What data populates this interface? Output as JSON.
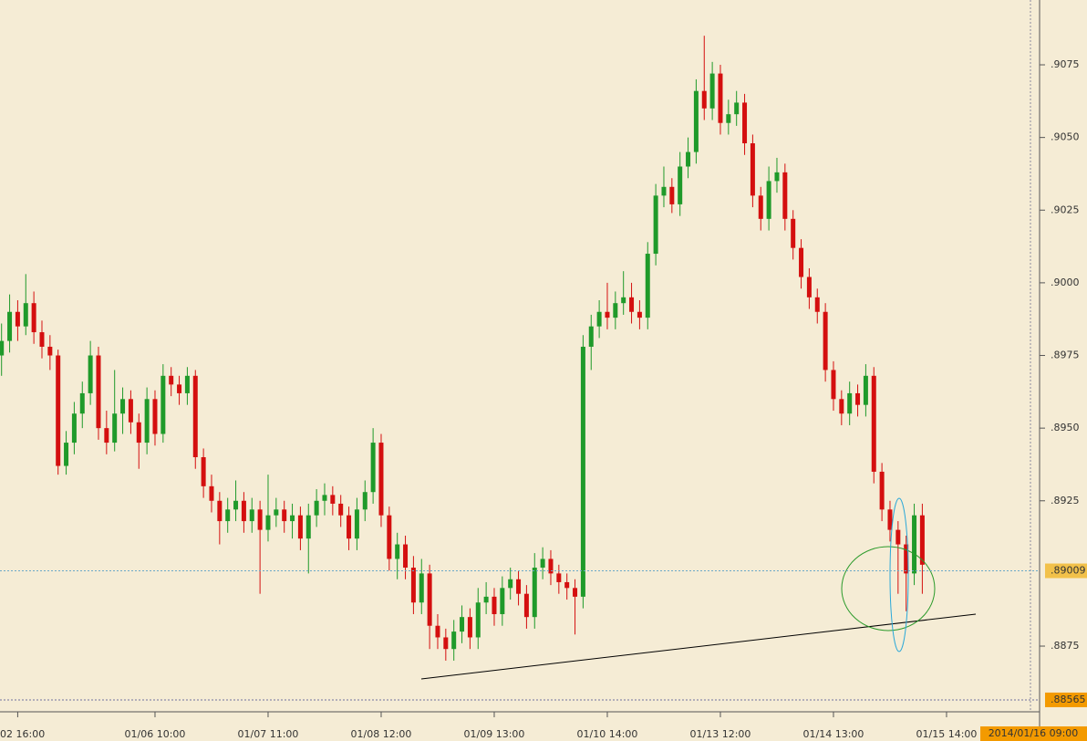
{
  "chart_data": {
    "type": "candlestick",
    "up_color": "#1f9a2a",
    "down_color": "#d40f0f",
    "ylim": [
      0.88524,
      0.90973
    ],
    "yticks": [
      {
        "value": 0.9075,
        "label": ".9075"
      },
      {
        "value": 0.905,
        "label": ".9050"
      },
      {
        "value": 0.9025,
        "label": ".9025"
      },
      {
        "value": 0.9,
        "label": ".9000"
      },
      {
        "value": 0.8975,
        "label": ".8975"
      },
      {
        "value": 0.895,
        "label": ".8950"
      },
      {
        "value": 0.8925,
        "label": ".8925"
      },
      {
        "value": 0.8875,
        "label": ".8875"
      }
    ],
    "current_price": {
      "value": 0.89009,
      "label": ".89009"
    },
    "low_marker": {
      "value": 0.88565,
      "label": ".88565"
    },
    "time_label": "2014/01/16 09:00",
    "categories": [
      null,
      null,
      "02 16:00",
      null,
      null,
      null,
      null,
      null,
      null,
      null,
      null,
      null,
      null,
      null,
      null,
      null,
      null,
      null,
      null,
      "01/06 10:00",
      null,
      null,
      null,
      null,
      null,
      null,
      null,
      null,
      null,
      null,
      null,
      null,
      null,
      "01/07 11:00",
      null,
      null,
      null,
      null,
      null,
      null,
      null,
      null,
      null,
      null,
      null,
      null,
      null,
      "01/08 12:00",
      null,
      null,
      null,
      null,
      null,
      null,
      null,
      null,
      null,
      null,
      null,
      null,
      null,
      "01/09 13:00",
      null,
      null,
      null,
      null,
      null,
      null,
      null,
      null,
      null,
      null,
      null,
      null,
      null,
      "01/10 14:00",
      null,
      null,
      null,
      null,
      null,
      null,
      null,
      null,
      null,
      null,
      null,
      null,
      null,
      "01/13 12:00",
      null,
      null,
      null,
      null,
      null,
      null,
      null,
      null,
      null,
      null,
      null,
      null,
      null,
      "01/14 13:00",
      null,
      null,
      null,
      null,
      null,
      null,
      null,
      null,
      null,
      null,
      null,
      null,
      null,
      "01/15 14:00"
    ],
    "ohlc": [
      [
        0.8975,
        0.8986,
        0.8968,
        0.898
      ],
      [
        0.898,
        0.8996,
        0.8976,
        0.899
      ],
      [
        0.899,
        0.8994,
        0.898,
        0.8985
      ],
      [
        0.8985,
        0.9003,
        0.8982,
        0.8993
      ],
      [
        0.8993,
        0.8997,
        0.8979,
        0.8983
      ],
      [
        0.8983,
        0.8987,
        0.8974,
        0.8978
      ],
      [
        0.8978,
        0.8982,
        0.897,
        0.8975
      ],
      [
        0.8975,
        0.8977,
        0.8934,
        0.8937
      ],
      [
        0.8937,
        0.8949,
        0.8934,
        0.8945
      ],
      [
        0.8945,
        0.8959,
        0.8941,
        0.8955
      ],
      [
        0.8955,
        0.8966,
        0.895,
        0.8962
      ],
      [
        0.8962,
        0.898,
        0.8958,
        0.8975
      ],
      [
        0.8975,
        0.8978,
        0.8946,
        0.895
      ],
      [
        0.895,
        0.8956,
        0.8941,
        0.8945
      ],
      [
        0.8945,
        0.897,
        0.8942,
        0.8955
      ],
      [
        0.8955,
        0.8964,
        0.8948,
        0.896
      ],
      [
        0.896,
        0.8963,
        0.8948,
        0.8952
      ],
      [
        0.8952,
        0.8955,
        0.8936,
        0.8945
      ],
      [
        0.8945,
        0.8964,
        0.8941,
        0.896
      ],
      [
        0.896,
        0.8963,
        0.8944,
        0.8948
      ],
      [
        0.8948,
        0.8972,
        0.8945,
        0.8968
      ],
      [
        0.8968,
        0.8971,
        0.8961,
        0.8965
      ],
      [
        0.8965,
        0.8968,
        0.8958,
        0.8962
      ],
      [
        0.8962,
        0.8971,
        0.8958,
        0.8968
      ],
      [
        0.8968,
        0.897,
        0.8936,
        0.894
      ],
      [
        0.894,
        0.8943,
        0.8926,
        0.893
      ],
      [
        0.893,
        0.8934,
        0.8921,
        0.8925
      ],
      [
        0.8925,
        0.8928,
        0.891,
        0.8918
      ],
      [
        0.8918,
        0.8926,
        0.8914,
        0.8922
      ],
      [
        0.8922,
        0.8932,
        0.8918,
        0.8925
      ],
      [
        0.8925,
        0.8928,
        0.8914,
        0.8918
      ],
      [
        0.8918,
        0.8926,
        0.8914,
        0.8922
      ],
      [
        0.8922,
        0.8925,
        0.8893,
        0.8915
      ],
      [
        0.8915,
        0.8934,
        0.8911,
        0.892
      ],
      [
        0.892,
        0.8926,
        0.8916,
        0.8922
      ],
      [
        0.8922,
        0.8925,
        0.8914,
        0.8918
      ],
      [
        0.8918,
        0.8924,
        0.8912,
        0.892
      ],
      [
        0.892,
        0.8923,
        0.8908,
        0.8912
      ],
      [
        0.8912,
        0.8924,
        0.89,
        0.892
      ],
      [
        0.892,
        0.8929,
        0.8916,
        0.8925
      ],
      [
        0.8925,
        0.8931,
        0.892,
        0.8927
      ],
      [
        0.8927,
        0.893,
        0.892,
        0.8924
      ],
      [
        0.8924,
        0.8927,
        0.8916,
        0.892
      ],
      [
        0.892,
        0.8923,
        0.8908,
        0.8912
      ],
      [
        0.8912,
        0.8926,
        0.8908,
        0.8922
      ],
      [
        0.8922,
        0.8932,
        0.8918,
        0.8928
      ],
      [
        0.8928,
        0.895,
        0.8924,
        0.8945
      ],
      [
        0.8945,
        0.8948,
        0.8916,
        0.892
      ],
      [
        0.892,
        0.8923,
        0.8901,
        0.8905
      ],
      [
        0.8905,
        0.8914,
        0.8898,
        0.891
      ],
      [
        0.891,
        0.8913,
        0.8898,
        0.8902
      ],
      [
        0.8902,
        0.8906,
        0.8886,
        0.889
      ],
      [
        0.889,
        0.8905,
        0.8886,
        0.89
      ],
      [
        0.89,
        0.8903,
        0.8874,
        0.8882
      ],
      [
        0.8882,
        0.8886,
        0.8874,
        0.8878
      ],
      [
        0.8878,
        0.8881,
        0.887,
        0.8874
      ],
      [
        0.8874,
        0.8884,
        0.887,
        0.888
      ],
      [
        0.888,
        0.8889,
        0.8876,
        0.8885
      ],
      [
        0.8885,
        0.8888,
        0.8874,
        0.8878
      ],
      [
        0.8878,
        0.8895,
        0.8874,
        0.889
      ],
      [
        0.889,
        0.8897,
        0.8886,
        0.8892
      ],
      [
        0.8892,
        0.8895,
        0.8882,
        0.8886
      ],
      [
        0.8886,
        0.8899,
        0.8882,
        0.8895
      ],
      [
        0.8895,
        0.8902,
        0.8891,
        0.8898
      ],
      [
        0.8898,
        0.8901,
        0.8889,
        0.8893
      ],
      [
        0.8893,
        0.8896,
        0.8881,
        0.8885
      ],
      [
        0.8885,
        0.8907,
        0.8881,
        0.8902
      ],
      [
        0.8902,
        0.8909,
        0.8898,
        0.8905
      ],
      [
        0.8905,
        0.8908,
        0.8896,
        0.89
      ],
      [
        0.89,
        0.8903,
        0.8893,
        0.8897
      ],
      [
        0.8897,
        0.89,
        0.8891,
        0.8895
      ],
      [
        0.8895,
        0.8898,
        0.8879,
        0.8892
      ],
      [
        0.8892,
        0.8982,
        0.8888,
        0.8978
      ],
      [
        0.8978,
        0.8989,
        0.897,
        0.8985
      ],
      [
        0.8985,
        0.8994,
        0.8981,
        0.899
      ],
      [
        0.899,
        0.9,
        0.8984,
        0.8988
      ],
      [
        0.8988,
        0.8997,
        0.8984,
        0.8993
      ],
      [
        0.8993,
        0.9004,
        0.8989,
        0.8995
      ],
      [
        0.8995,
        0.9,
        0.8986,
        0.899
      ],
      [
        0.899,
        0.8994,
        0.8984,
        0.8988
      ],
      [
        0.8988,
        0.9014,
        0.8984,
        0.901
      ],
      [
        0.901,
        0.9034,
        0.9006,
        0.903
      ],
      [
        0.903,
        0.904,
        0.9026,
        0.9033
      ],
      [
        0.9033,
        0.9036,
        0.9024,
        0.9027
      ],
      [
        0.9027,
        0.9045,
        0.9023,
        0.904
      ],
      [
        0.904,
        0.905,
        0.9036,
        0.9045
      ],
      [
        0.9045,
        0.907,
        0.9041,
        0.9066
      ],
      [
        0.9066,
        0.9085,
        0.9056,
        0.906
      ],
      [
        0.906,
        0.9076,
        0.9056,
        0.9072
      ],
      [
        0.9072,
        0.9075,
        0.9051,
        0.9055
      ],
      [
        0.9055,
        0.9063,
        0.9051,
        0.9058
      ],
      [
        0.9058,
        0.9066,
        0.9054,
        0.9062
      ],
      [
        0.9062,
        0.9065,
        0.9044,
        0.9048
      ],
      [
        0.9048,
        0.9051,
        0.9026,
        0.903
      ],
      [
        0.903,
        0.9033,
        0.9018,
        0.9022
      ],
      [
        0.9022,
        0.904,
        0.9018,
        0.9035
      ],
      [
        0.9035,
        0.9043,
        0.9031,
        0.9038
      ],
      [
        0.9038,
        0.9041,
        0.9018,
        0.9022
      ],
      [
        0.9022,
        0.9025,
        0.9008,
        0.9012
      ],
      [
        0.9012,
        0.9015,
        0.8998,
        0.9002
      ],
      [
        0.9002,
        0.9005,
        0.8991,
        0.8995
      ],
      [
        0.8995,
        0.8998,
        0.8986,
        0.899
      ],
      [
        0.899,
        0.8993,
        0.8966,
        0.897
      ],
      [
        0.897,
        0.8973,
        0.8956,
        0.896
      ],
      [
        0.896,
        0.8963,
        0.8951,
        0.8955
      ],
      [
        0.8955,
        0.8966,
        0.8951,
        0.8962
      ],
      [
        0.8962,
        0.8965,
        0.8954,
        0.8958
      ],
      [
        0.8958,
        0.8972,
        0.8954,
        0.8968
      ],
      [
        0.8968,
        0.8971,
        0.8931,
        0.8935
      ],
      [
        0.8935,
        0.8938,
        0.8918,
        0.8922
      ],
      [
        0.8922,
        0.8925,
        0.8911,
        0.8915
      ],
      [
        0.8915,
        0.8918,
        0.8893,
        0.891
      ],
      [
        0.891,
        0.8913,
        0.8887,
        0.89
      ],
      [
        0.89,
        0.8924,
        0.8896,
        0.892
      ],
      [
        0.892,
        0.8924,
        0.8893,
        0.8903
      ],
      null,
      null,
      null
    ]
  }
}
